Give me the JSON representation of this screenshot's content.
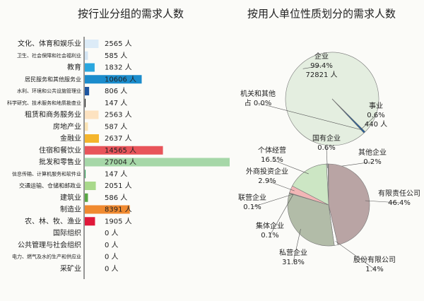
{
  "chart_data": [
    {
      "type": "hbar",
      "title": "按行业分组的需求人数",
      "categories": [
        "文化、体育和娱乐业",
        "卫生、社会保障和社会福利业",
        "教育",
        "居民服务和其他服务业",
        "水利、环境和公共设施管理业",
        "科学研究、技术服务和地质勘查业",
        "租赁和商务服务业",
        "房地产业",
        "金融业",
        "住宿和餐饮业",
        "批发和零售业",
        "信息传输、计算机服务和软件业",
        "交通运输、仓储和邮政业",
        "建筑业",
        "制造业",
        "农、林、牧、渔业",
        "国际组织",
        "公共管理与社会组织",
        "电力、燃气及水的生产和供应业",
        "采矿业"
      ],
      "values": [
        2565,
        585,
        1832,
        10606,
        806,
        147,
        2563,
        587,
        2637,
        14565,
        27004,
        147,
        2051,
        586,
        8391,
        1905,
        0,
        0,
        0,
        0
      ],
      "value_labels": [
        "2565 人",
        "585 人",
        "1832 人",
        "10606 人",
        "806 人",
        "147 人",
        "2563 人",
        "587 人",
        "2637 人",
        "14565 人",
        "27004 人",
        "147 人",
        "2051 人",
        "586 人",
        "8391 人",
        "1905 人",
        "0 人",
        "0 人",
        "0 人",
        "0 人"
      ],
      "colors": [
        "#dcebf7",
        "#d3e5f4",
        "#2aa7df",
        "#1b8ccc",
        "#1e56a0",
        "#222222",
        "#fde2c0",
        "#fbe4b4",
        "#f4b52c",
        "#e8545a",
        "#a6d7a8",
        "#36a65c",
        "#a9d98b",
        "#58a744",
        "#f08a30",
        "#e0193a",
        "#ffffff",
        "#ffffff",
        "#ffffff",
        "#ffffff"
      ]
    },
    {
      "type": "pie",
      "title": "按用人单位性质划分的需求人数",
      "categories": [
        "企业",
        "事业",
        "机关和其他"
      ],
      "values": [
        99.4,
        0.6,
        0.0
      ],
      "value_labels": [
        "99.4%",
        "0.6%",
        "占 0.0%"
      ],
      "count_labels": [
        "72821 人",
        "440 人",
        null
      ],
      "colors": [
        "#e4eee0",
        "#1f5c9c",
        "#888888"
      ]
    },
    {
      "type": "pie",
      "categories": [
        "国有企业",
        "其他企业",
        "有限责任公司",
        "股份有限公司",
        "私营企业",
        "集体企业",
        "联营企业",
        "外商投资企业",
        "个体经营"
      ],
      "values": [
        0.6,
        0.2,
        46.4,
        1.4,
        31.8,
        0.1,
        0.1,
        2.9,
        16.5
      ],
      "value_labels": [
        "0.6%",
        "0.2%",
        "46.4%",
        "1.4%",
        "31.8%",
        "0.1%",
        "0.1%",
        "2.9%",
        "16.5%"
      ],
      "colors": [
        "#ffffff",
        "#f4f4f4",
        "#b9a4a4",
        "#ffffff",
        "#b2bca8",
        "#dddddd",
        "#eeeeee",
        "#f2b6b6",
        "#cce6c4"
      ]
    }
  ]
}
